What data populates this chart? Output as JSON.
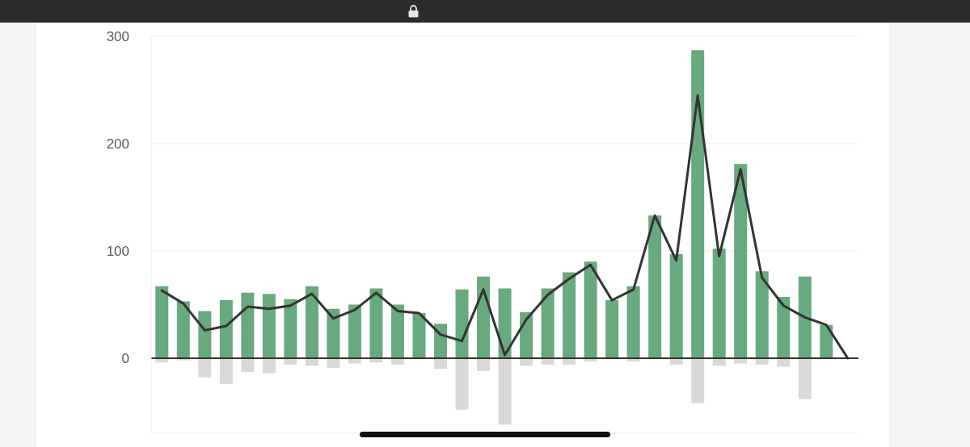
{
  "chart_data": {
    "type": "bar",
    "categories": [
      null,
      null,
      null,
      null,
      null,
      null,
      null,
      null,
      null,
      null,
      null,
      null,
      null,
      null,
      null,
      null,
      null,
      null,
      null,
      null,
      null,
      null,
      null,
      null,
      null,
      null,
      null,
      null,
      null,
      null,
      null,
      null,
      null
    ],
    "series": [
      {
        "color": "#68a97e",
        "values": [
          67,
          53,
          44,
          54,
          61,
          60,
          55,
          67,
          46,
          50,
          65,
          50,
          42,
          32,
          64,
          76,
          65,
          43,
          65,
          80,
          90,
          54,
          67,
          133,
          97,
          287,
          102,
          181,
          81,
          57,
          76,
          31,
          null
        ]
      },
      {
        "color": "#d9d9d9",
        "values": [
          -4,
          -2,
          -18,
          -24,
          -13,
          -14,
          -6,
          -7,
          -9,
          -5,
          -4,
          -6,
          null,
          -10,
          -48,
          -12,
          -62,
          -7,
          -6,
          -6,
          -3,
          null,
          -3,
          null,
          -6,
          -42,
          -7,
          -5,
          -6,
          -8,
          -38,
          null,
          null
        ]
      },
      {
        "type": "line",
        "color": "#333333",
        "values": [
          63,
          51,
          26,
          30,
          48,
          46,
          49,
          60,
          37,
          45,
          61,
          44,
          42,
          22,
          16,
          64,
          3,
          36,
          59,
          74,
          87,
          54,
          64,
          133,
          91,
          245,
          95,
          176,
          75,
          49,
          38,
          31,
          0
        ]
      }
    ],
    "stacked": true,
    "ylim": [
      -70,
      300
    ],
    "yticks": [
      0,
      100,
      200,
      300
    ],
    "grid": "y",
    "tick_labels": "y",
    "marker": "none",
    "line_style": "solid",
    "ref_lines": [
      {
        "axis": "y",
        "value": 0,
        "color": "#333333"
      }
    ]
  }
}
